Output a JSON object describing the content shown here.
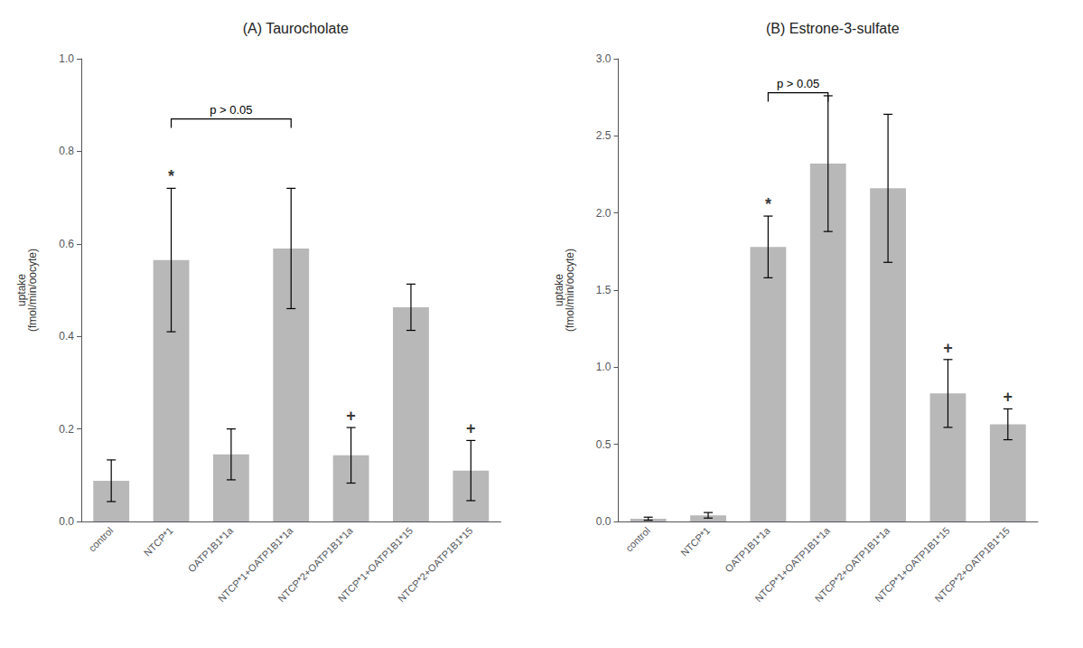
{
  "chart_data": [
    {
      "type": "bar",
      "title": "(A) Taurocholate",
      "categories": [
        "control",
        "NTCP*1",
        "OATP1B1*1a",
        "NTCP*1+OATP1B1*1a",
        "NTCP*2+OATP1B1*1a",
        "NTCP*1+OATP1B1*15",
        "NTCP*2+OATP1B1*15"
      ],
      "values": [
        0.088,
        0.565,
        0.145,
        0.59,
        0.143,
        0.463,
        0.11
      ],
      "errors": [
        0.045,
        0.155,
        0.055,
        0.13,
        0.06,
        0.05,
        0.065
      ],
      "ylim": [
        0.0,
        1.0
      ],
      "yticks": [
        {
          "value": 0.0,
          "label": "0.0"
        },
        0.2,
        0.4,
        0.6,
        0.8,
        {
          "value": 1.0,
          "label": "1.0"
        }
      ],
      "ylabel": "uptake\n(fmol/min/oocyte)",
      "color": "#b8b8b8",
      "grid": false,
      "annotations": [
        {
          "text": "*",
          "category": "NTCP*1"
        },
        {
          "text": "+",
          "category": "NTCP*2+OATP1B1*1a"
        },
        {
          "text": "+",
          "category": "NTCP*2+OATP1B1*15"
        },
        {
          "text": "p > 0.05",
          "from": "NTCP*1",
          "to": "NTCP*1+OATP1B1*1a",
          "y": 0.87
        }
      ]
    },
    {
      "type": "bar",
      "title": "(B) Estrone-3-sulfate",
      "categories": [
        "control",
        "NTCP*1",
        "OATP1B1*1a",
        "NTCP*1+OATP1B1*1a",
        "NTCP*2+OATP1B1*1a",
        "NTCP*1+OATP1B1*15",
        "NTCP*2+OATP1B1*15"
      ],
      "values": [
        0.018,
        0.04,
        1.78,
        2.32,
        2.16,
        0.83,
        0.63
      ],
      "errors": [
        0.01,
        0.018,
        0.2,
        0.44,
        0.48,
        0.22,
        0.1
      ],
      "ylim": [
        0.0,
        3.0
      ],
      "yticks": [
        {
          "value": 0.0,
          "label": "0.0"
        },
        0.5,
        {
          "value": 1.0,
          "label": "1.0"
        },
        1.5,
        {
          "value": 2.0,
          "label": "2.0"
        },
        2.5,
        {
          "value": 3.0,
          "label": "3.0"
        }
      ],
      "ylabel": "uptake\n(fmol/min/oocyte)",
      "color": "#b8b8b8",
      "grid": false,
      "annotations": [
        {
          "text": "*",
          "category": "OATP1B1*1a"
        },
        {
          "text": "+",
          "category": "NTCP*1+OATP1B1*15"
        },
        {
          "text": "+",
          "category": "NTCP*2+OATP1B1*15"
        },
        {
          "text": "p > 0.05",
          "from": "OATP1B1*1a",
          "to": "NTCP*1+OATP1B1*1a",
          "y": 2.78
        }
      ]
    }
  ]
}
